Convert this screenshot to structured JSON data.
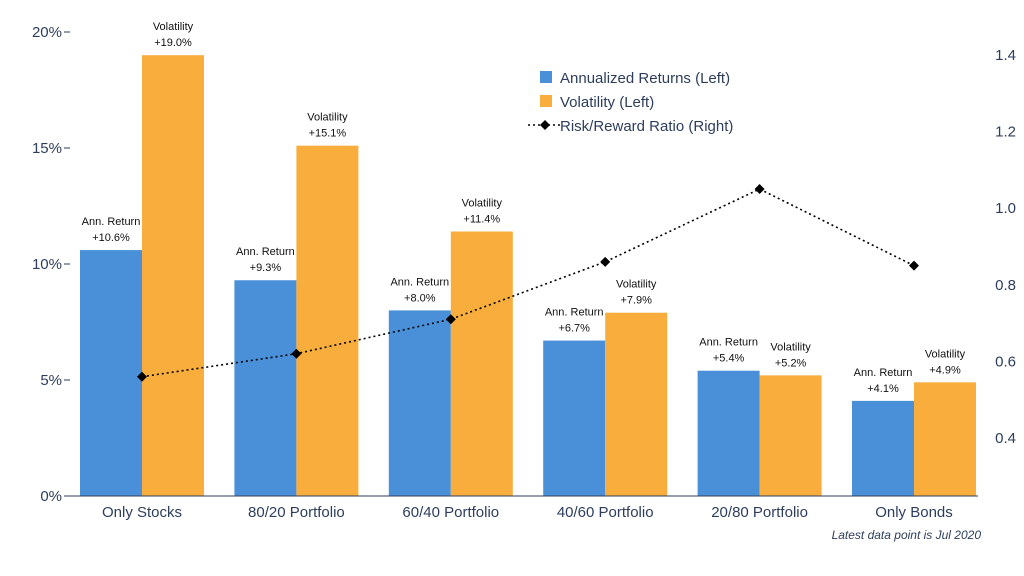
{
  "chart_data": {
    "type": "bar",
    "categories": [
      "Only Stocks",
      "80/20 Portfolio",
      "60/40 Portfolio",
      "40/60 Portfolio",
      "20/80 Portfolio",
      "Only Bonds"
    ],
    "series": [
      {
        "name": "Annualized Returns (Left)",
        "type": "bar",
        "axis": "left",
        "color": "#4a90d9",
        "values": [
          10.6,
          9.3,
          8.0,
          6.7,
          5.4,
          4.1
        ],
        "label_title": "Ann. Return",
        "labels": [
          "+10.6%",
          "+9.3%",
          "+8.0%",
          "+6.7%",
          "+5.4%",
          "+4.1%"
        ]
      },
      {
        "name": "Volatility (Left)",
        "type": "bar",
        "axis": "left",
        "color": "#f8ad3c",
        "values": [
          19.0,
          15.1,
          11.4,
          7.9,
          5.2,
          4.9
        ],
        "label_title": "Volatility",
        "labels": [
          "+19.0%",
          "+15.1%",
          "+11.4%",
          "+7.9%",
          "+5.2%",
          "+4.9%"
        ]
      },
      {
        "name": "Risk/Reward Ratio (Right)",
        "type": "line",
        "axis": "right",
        "color": "#000000",
        "style": "dotted",
        "marker": "diamond",
        "values": [
          0.56,
          0.62,
          0.71,
          0.86,
          1.05,
          0.85
        ]
      }
    ],
    "y_left": {
      "ticks": [
        0,
        5,
        10,
        15,
        20
      ],
      "tick_labels": [
        "0%",
        "5%",
        "10%",
        "15%",
        "20%"
      ],
      "range": [
        0,
        20
      ]
    },
    "y_right": {
      "ticks": [
        0.4,
        0.6,
        0.8,
        1.0,
        1.2,
        1.4
      ],
      "tick_labels": [
        "0.4",
        "0.6",
        "0.8",
        "1.0",
        "1.2",
        "1.4"
      ],
      "range": [
        0.4,
        1.4
      ]
    },
    "legend_position": "top-center",
    "grid": false,
    "note": "Latest data point is Jul 2020"
  }
}
